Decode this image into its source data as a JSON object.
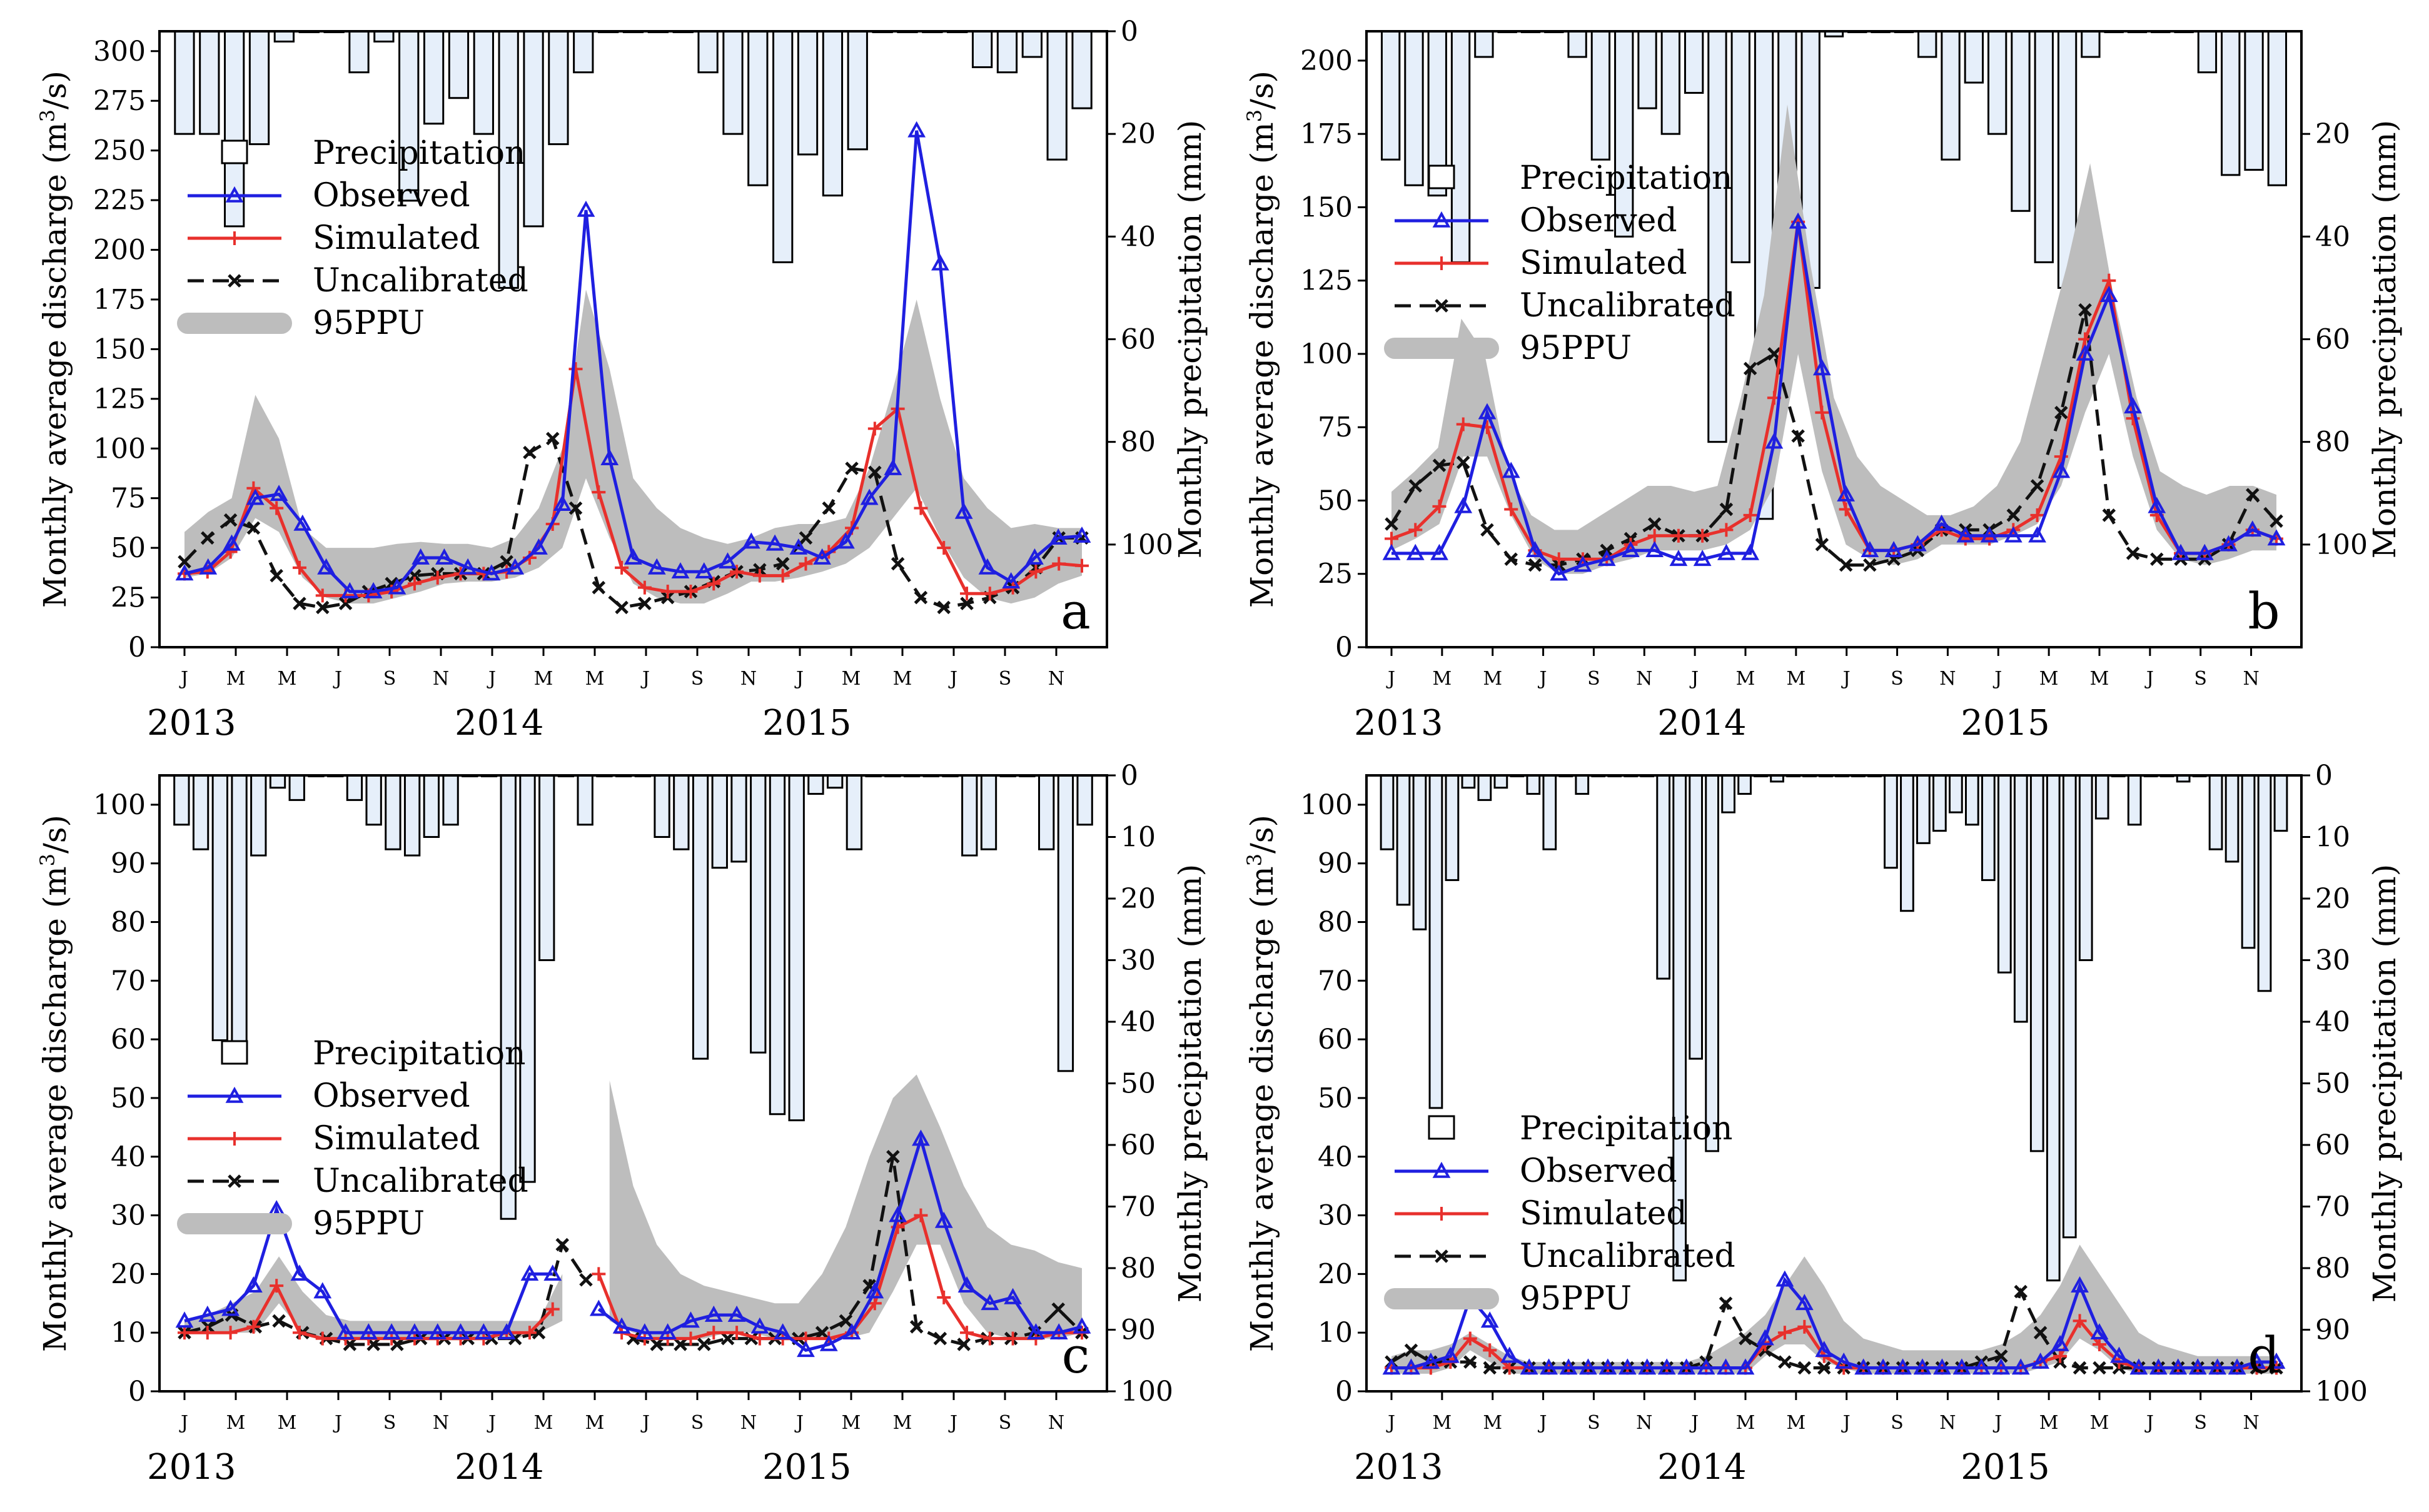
{
  "figure": {
    "month_ticks": [
      "J",
      "M",
      "M",
      "J",
      "S",
      "N",
      "J",
      "M",
      "M",
      "J",
      "S",
      "N",
      "J",
      "M",
      "M",
      "J",
      "S",
      "N"
    ],
    "years": [
      "2013",
      "2014",
      "2015"
    ],
    "ylabel_left": "Monthly average discharge (m",
    "ylabel_left_sup": "3",
    "ylabel_left_tail": "/s)",
    "ylabel_right": "Monthly precipitation (mm)",
    "legend": {
      "precipitation": "Precipitation",
      "observed": "Observed",
      "simulated": "Simulated",
      "uncalibrated": "Uncalibrated",
      "ppu": "95PPU"
    },
    "colors": {
      "bar_fill": "#e6effa",
      "observed": "#1f1fe0",
      "simulated": "#e8302c",
      "uncalibrated": "#111111",
      "ppu": "#bdbdbd"
    }
  },
  "chart_data": [
    {
      "type": "line",
      "panel": "a",
      "ylim_left": [
        0,
        310
      ],
      "yticks_left": [
        0,
        25,
        50,
        75,
        100,
        125,
        150,
        175,
        200,
        225,
        250,
        275,
        300
      ],
      "ylim_right": [
        0,
        120
      ],
      "yticks_right": [
        0,
        20,
        40,
        60,
        80,
        100
      ],
      "precipitation": [
        20,
        20,
        38,
        22,
        2,
        0,
        0,
        8,
        2,
        33,
        18,
        13,
        20,
        50,
        38,
        22,
        8,
        0,
        0,
        0,
        0,
        8,
        20,
        30,
        45,
        24,
        32,
        23,
        0,
        0,
        0,
        0,
        7,
        8,
        5,
        25,
        15
      ],
      "observed": [
        37,
        40,
        52,
        75,
        77,
        62,
        40,
        28,
        28,
        30,
        45,
        45,
        40,
        37,
        40,
        50,
        72,
        220,
        95,
        45,
        40,
        38,
        38,
        43,
        53,
        52,
        50,
        45,
        53,
        75,
        90,
        260,
        193,
        68,
        40,
        33,
        45,
        55,
        56
      ],
      "simulated": [
        37,
        38,
        48,
        80,
        70,
        40,
        26,
        26,
        26,
        28,
        32,
        35,
        37,
        37,
        38,
        45,
        62,
        140,
        78,
        40,
        30,
        28,
        28,
        32,
        38,
        36,
        36,
        42,
        48,
        60,
        110,
        120,
        70,
        50,
        27,
        27,
        30,
        38,
        42,
        41
      ],
      "uncalibrated": [
        43,
        55,
        64,
        60,
        36,
        22,
        20,
        22,
        28,
        32,
        36,
        37,
        37,
        37,
        43,
        98,
        105,
        70,
        30,
        20,
        22,
        25,
        28,
        33,
        38,
        39,
        42,
        55,
        70,
        90,
        88,
        42,
        25,
        20,
        22,
        25,
        30,
        40,
        55,
        55
      ],
      "ppu_upper": [
        58,
        68,
        75,
        127,
        105,
        60,
        50,
        50,
        50,
        52,
        53,
        52,
        52,
        50,
        55,
        70,
        100,
        180,
        140,
        85,
        70,
        60,
        55,
        52,
        55,
        60,
        62,
        62,
        65,
        90,
        130,
        175,
        125,
        85,
        70,
        60,
        62,
        60,
        60
      ],
      "ppu_lower": [
        35,
        37,
        45,
        65,
        58,
        35,
        25,
        22,
        22,
        25,
        28,
        32,
        33,
        33,
        35,
        40,
        50,
        85,
        55,
        32,
        25,
        22,
        22,
        27,
        33,
        33,
        35,
        38,
        42,
        50,
        65,
        80,
        55,
        35,
        25,
        22,
        25,
        32,
        36
      ]
    },
    {
      "type": "line",
      "panel": "b",
      "ylim_left": [
        0,
        210
      ],
      "yticks_left": [
        0,
        25,
        50,
        75,
        100,
        125,
        150,
        175,
        200
      ],
      "ylim_right": [
        0,
        120
      ],
      "yticks_right": [
        20,
        40,
        60,
        80,
        100
      ],
      "precipitation": [
        25,
        30,
        32,
        45,
        5,
        0,
        0,
        0,
        5,
        25,
        40,
        15,
        20,
        12,
        80,
        45,
        95,
        40,
        50,
        1,
        0,
        0,
        0,
        5,
        25,
        10,
        20,
        35,
        45,
        50,
        5,
        0,
        0,
        0,
        0,
        8,
        28,
        27,
        30
      ],
      "observed": [
        32,
        32,
        32,
        48,
        80,
        60,
        33,
        25,
        28,
        30,
        33,
        33,
        30,
        30,
        32,
        32,
        70,
        145,
        95,
        52,
        33,
        33,
        35,
        42,
        38,
        38,
        38,
        38,
        60,
        100,
        120,
        82,
        48,
        32,
        32,
        35,
        40,
        37
      ],
      "simulated": [
        37,
        40,
        48,
        76,
        75,
        47,
        33,
        30,
        30,
        30,
        35,
        38,
        38,
        38,
        40,
        45,
        85,
        145,
        80,
        47,
        33,
        33,
        35,
        40,
        37,
        37,
        40,
        45,
        65,
        105,
        125,
        78,
        45,
        32,
        32,
        35,
        40,
        37
      ],
      "uncalibrated": [
        42,
        55,
        62,
        63,
        40,
        30,
        28,
        28,
        30,
        33,
        37,
        42,
        38,
        38,
        47,
        95,
        100,
        72,
        35,
        28,
        28,
        30,
        33,
        40,
        40,
        40,
        45,
        55,
        80,
        115,
        45,
        32,
        30,
        30,
        30,
        35,
        52,
        43
      ],
      "ppu_upper": [
        53,
        60,
        68,
        112,
        100,
        60,
        45,
        40,
        40,
        45,
        50,
        55,
        55,
        53,
        55,
        85,
        120,
        185,
        130,
        85,
        65,
        55,
        50,
        45,
        45,
        48,
        55,
        70,
        100,
        130,
        165,
        120,
        85,
        60,
        55,
        52,
        55,
        55,
        52
      ],
      "ppu_lower": [
        33,
        37,
        42,
        65,
        65,
        45,
        30,
        25,
        25,
        28,
        30,
        33,
        33,
        33,
        35,
        40,
        55,
        100,
        60,
        35,
        30,
        28,
        30,
        35,
        35,
        35,
        38,
        42,
        55,
        80,
        100,
        65,
        40,
        30,
        28,
        30,
        33,
        33
      ]
    },
    {
      "type": "line",
      "panel": "c",
      "ylim_left": [
        0,
        105
      ],
      "yticks_left": [
        0,
        10,
        20,
        30,
        40,
        50,
        60,
        70,
        80,
        90,
        100
      ],
      "ylim_right": [
        0,
        100
      ],
      "yticks_right": [
        0,
        10,
        20,
        30,
        40,
        50,
        60,
        70,
        80,
        90,
        100
      ],
      "precipitation": [
        8,
        12,
        43,
        44,
        13,
        2,
        4,
        0,
        0,
        4,
        8,
        12,
        13,
        10,
        8,
        0,
        0,
        72,
        66,
        30,
        0,
        8,
        0,
        0,
        0,
        10,
        12,
        46,
        15,
        14,
        45,
        55,
        56,
        3,
        2,
        12,
        0,
        0,
        0,
        0,
        0,
        13,
        12,
        0,
        0,
        12,
        48,
        8
      ],
      "observed": [
        12,
        13,
        14,
        18,
        31,
        20,
        17,
        10,
        10,
        10,
        10,
        10,
        10,
        10,
        10,
        20,
        20,
        null,
        14,
        11,
        10,
        10,
        12,
        13,
        13,
        11,
        10,
        7,
        8,
        10,
        17,
        30,
        43,
        29,
        18,
        15,
        16,
        10,
        10,
        11
      ],
      "simulated": [
        10,
        10,
        10,
        11,
        18,
        10,
        9,
        9,
        9,
        9,
        9,
        9,
        9,
        9,
        10,
        10,
        14,
        null,
        20,
        10,
        9,
        9,
        9,
        10,
        10,
        9,
        9,
        9,
        9,
        10,
        15,
        28,
        30,
        16,
        10,
        9,
        9,
        9,
        10,
        10
      ],
      "uncalibrated": [
        10,
        11,
        13,
        11,
        12,
        10,
        9,
        8,
        8,
        8,
        9,
        9,
        9,
        9,
        9,
        10,
        25,
        19,
        null,
        9,
        8,
        8,
        8,
        9,
        9,
        9,
        9,
        10,
        12,
        18,
        40,
        11,
        9,
        8,
        9,
        9,
        10,
        14,
        10
      ],
      "ppu_upper": [
        12,
        13,
        15,
        17,
        23,
        17,
        13,
        12,
        12,
        12,
        12,
        12,
        12,
        12,
        12,
        12,
        20,
        null,
        53,
        35,
        25,
        20,
        18,
        17,
        16,
        15,
        15,
        20,
        28,
        40,
        50,
        54,
        45,
        35,
        28,
        25,
        24,
        22,
        21
      ],
      "ppu_lower": [
        10,
        10,
        10,
        10,
        15,
        10,
        9,
        9,
        9,
        9,
        9,
        9,
        9,
        9,
        9,
        10,
        12,
        null,
        12,
        10,
        9,
        9,
        9,
        10,
        10,
        9,
        9,
        9,
        9,
        10,
        17,
        25,
        25,
        15,
        10,
        9,
        9,
        9,
        10
      ]
    },
    {
      "type": "line",
      "panel": "d",
      "ylim_left": [
        0,
        105
      ],
      "yticks_left": [
        0,
        10,
        20,
        30,
        40,
        50,
        60,
        70,
        80,
        90,
        100
      ],
      "ylim_right": [
        0,
        100
      ],
      "yticks_right": [
        0,
        10,
        20,
        30,
        40,
        50,
        60,
        70,
        80,
        90,
        100
      ],
      "precipitation": [
        12,
        21,
        25,
        54,
        17,
        2,
        4,
        2,
        0,
        3,
        12,
        0,
        3,
        0,
        0,
        0,
        0,
        33,
        82,
        46,
        61,
        6,
        3,
        0,
        1,
        0,
        0,
        0,
        0,
        0,
        0,
        15,
        22,
        11,
        9,
        6,
        8,
        17,
        32,
        40,
        61,
        82,
        75,
        30,
        7,
        0,
        8,
        0,
        0,
        1,
        0,
        12,
        14,
        28,
        35,
        9
      ],
      "observed": [
        4,
        4,
        5,
        6,
        16,
        12,
        6,
        4,
        4,
        4,
        4,
        4,
        4,
        4,
        4,
        4,
        4,
        4,
        4,
        9,
        19,
        15,
        7,
        5,
        4,
        4,
        4,
        4,
        4,
        4,
        4,
        4,
        4,
        5,
        8,
        18,
        10,
        6,
        4,
        4,
        4,
        4,
        4,
        4,
        5,
        5
      ],
      "simulated": [
        4,
        4,
        4,
        5,
        9,
        7,
        4,
        4,
        4,
        4,
        4,
        4,
        4,
        4,
        4,
        4,
        4,
        4,
        4,
        8,
        10,
        11,
        6,
        4,
        4,
        4,
        4,
        4,
        4,
        4,
        4,
        4,
        4,
        5,
        6,
        12,
        8,
        5,
        4,
        4,
        4,
        4,
        4,
        4,
        4,
        4
      ],
      "uncalibrated": [
        5,
        7,
        5,
        5,
        5,
        4,
        4,
        4,
        4,
        4,
        4,
        4,
        4,
        4,
        4,
        4,
        5,
        15,
        9,
        7,
        5,
        4,
        4,
        4,
        4,
        4,
        4,
        4,
        4,
        4,
        5,
        6,
        17,
        10,
        5,
        4,
        4,
        4,
        4,
        4,
        4,
        4,
        4,
        4,
        4,
        4
      ],
      "ppu_upper": [
        6,
        7,
        7,
        8,
        10,
        8,
        6,
        5,
        5,
        5,
        5,
        5,
        5,
        5,
        5,
        5,
        6,
        8,
        10,
        13,
        18,
        23,
        18,
        12,
        9,
        8,
        7,
        7,
        7,
        7,
        7,
        8,
        10,
        13,
        18,
        25,
        20,
        15,
        10,
        8,
        7,
        6,
        6,
        6,
        6,
        6
      ],
      "ppu_lower": [
        3,
        3,
        3,
        4,
        7,
        5,
        3,
        3,
        3,
        3,
        3,
        3,
        3,
        3,
        3,
        3,
        3,
        3,
        3,
        6,
        8,
        8,
        5,
        4,
        3,
        3,
        3,
        3,
        3,
        3,
        3,
        3,
        3,
        4,
        5,
        9,
        7,
        4,
        3,
        3,
        3,
        3,
        3,
        3,
        3,
        3
      ]
    }
  ]
}
